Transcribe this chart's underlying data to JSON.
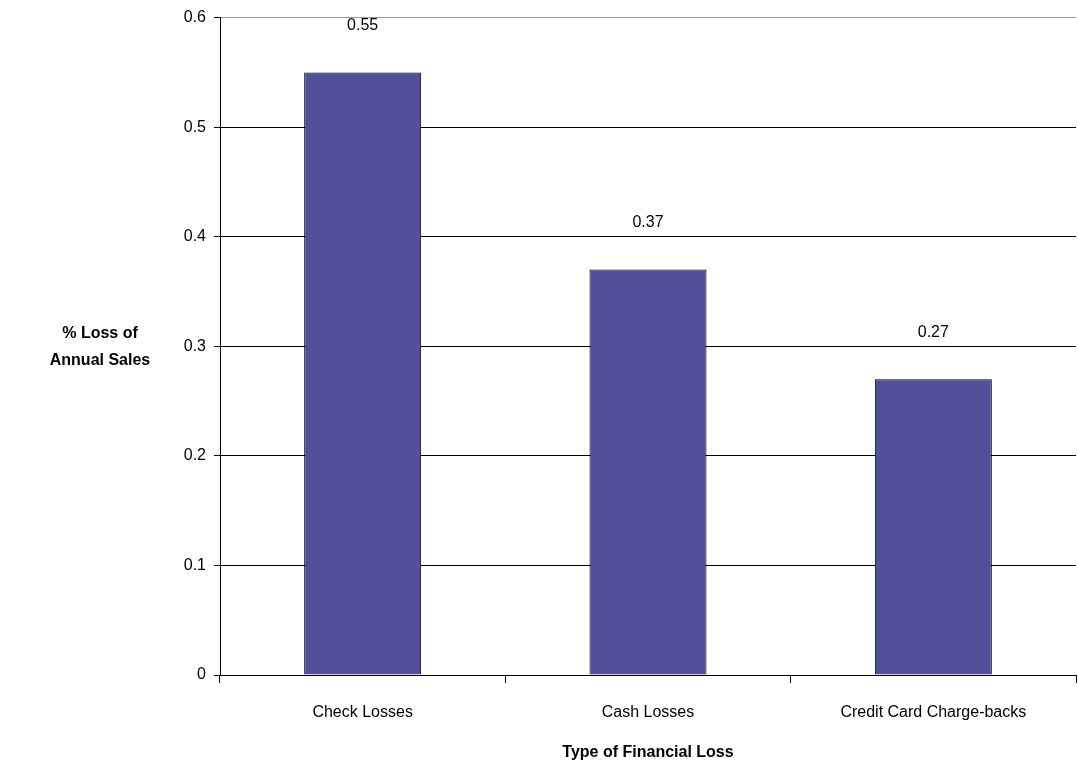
{
  "chart_data": {
    "type": "bar",
    "xlabel": "Type of Financial Loss",
    "ylabel": "% Loss of Annual Sales",
    "categories": [
      "Check Losses",
      "Cash Losses",
      "Credit Card Charge-backs"
    ],
    "values": [
      0.55,
      0.37,
      0.27
    ],
    "color": "#524f9b",
    "ylim": [
      0,
      0.6
    ],
    "yticks": [
      0,
      0.1,
      0.2,
      0.3,
      0.4,
      0.5,
      0.6
    ],
    "grid": "y",
    "data_labels": true
  }
}
